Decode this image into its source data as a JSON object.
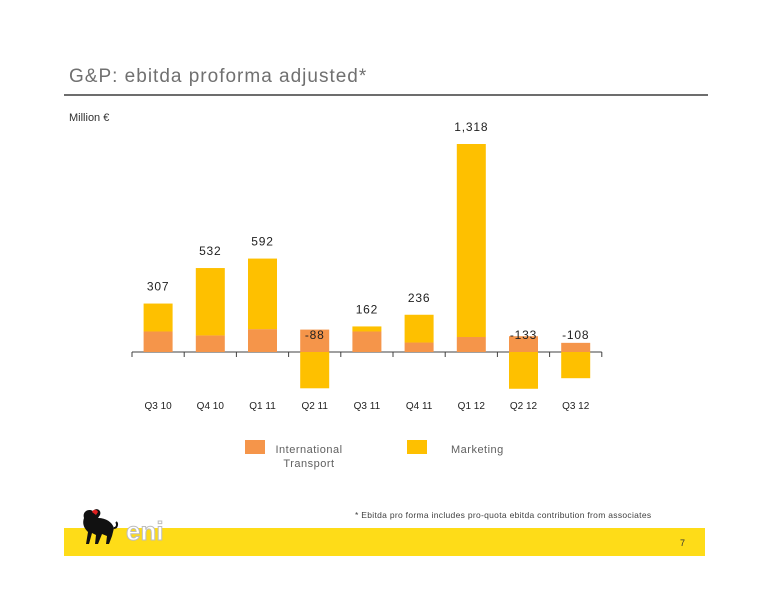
{
  "title": "G&P: ebitda proforma adjusted*",
  "unit_label": "Million €",
  "colors": {
    "international_transport": "#f5954a",
    "marketing": "#fec000",
    "footer_band": "#fedc18"
  },
  "chart_data": {
    "type": "bar",
    "stacked": true,
    "categories": [
      "Q3 10",
      "Q4 10",
      "Q1 11",
      "Q2 11",
      "Q3 11",
      "Q4 11",
      "Q1 12",
      "Q2 12",
      "Q3 12"
    ],
    "totals": [
      307,
      532,
      592,
      -88,
      162,
      236,
      1318,
      -133,
      -108
    ],
    "total_labels": [
      "307",
      "532",
      "592",
      "-88",
      "162",
      "236",
      "1,318",
      "-133",
      "-108"
    ],
    "series": [
      {
        "name": "International Transport",
        "values": [
          130,
          105,
          145,
          142,
          130,
          60,
          95,
          100,
          58
        ]
      },
      {
        "name": "Marketing",
        "values": [
          177,
          427,
          447,
          -230,
          32,
          176,
          1223,
          -233,
          -166
        ]
      }
    ]
  },
  "legend": {
    "items": [
      {
        "label": "International\nTransport"
      },
      {
        "label": "Marketing"
      }
    ]
  },
  "footnote": "*   Ebitda pro forma includes pro-quota ebitda contribution from associates",
  "page_number": "7",
  "logo": {
    "text": "eni"
  }
}
